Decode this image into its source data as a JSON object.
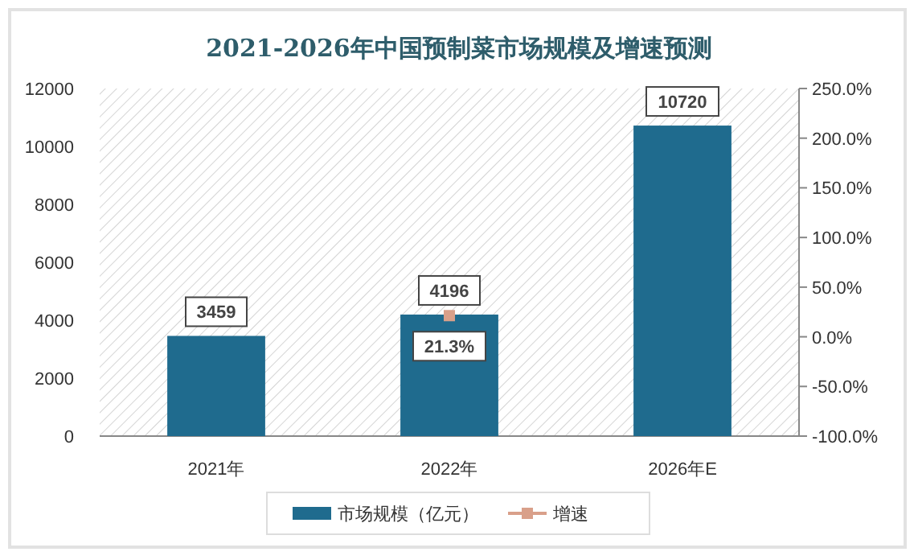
{
  "chart_data": {
    "type": "bar",
    "title": "2021-2026年中国预制菜市场规模及增速预测",
    "categories": [
      "2021年",
      "2022年",
      "2026年E"
    ],
    "series": [
      {
        "name": "市场规模（亿元）",
        "color": "#1f6b8e",
        "values": [
          3459,
          4196,
          10720
        ],
        "value_labels": [
          "3459",
          "4196",
          "10720"
        ]
      },
      {
        "name": "增速",
        "type": "line",
        "axis": "y2",
        "color": "#d9a08a",
        "values": [
          null,
          21.3,
          null
        ],
        "value_labels": [
          null,
          "21.3%",
          null
        ]
      }
    ],
    "marker": "square",
    "legend": "bottom",
    "grid": false,
    "ylim": [
      0,
      12000
    ],
    "yticks": [
      0,
      2000,
      4000,
      6000,
      8000,
      10000,
      12000
    ],
    "y2lim": [
      -100,
      250
    ],
    "y2ticks": [
      {
        "value": -100,
        "label": "-100.0%"
      },
      {
        "value": -50,
        "label": "-50.0%"
      },
      {
        "value": 0,
        "label": "0.0%"
      },
      {
        "value": 50,
        "label": "50.0%"
      },
      {
        "value": 100,
        "label": "100.0%"
      },
      {
        "value": 150,
        "label": "150.0%"
      },
      {
        "value": 200,
        "label": "200.0%"
      },
      {
        "value": 250,
        "label": "250.0%"
      }
    ]
  }
}
